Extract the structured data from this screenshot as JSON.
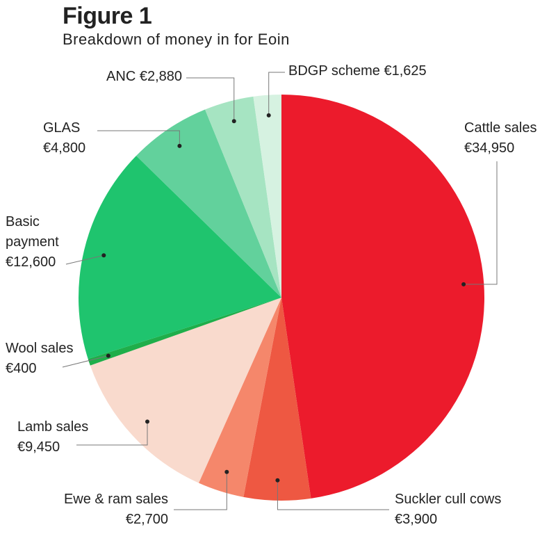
{
  "chart_data": {
    "type": "pie",
    "title": "Figure 1",
    "subtitle": "Breakdown of money in for Eoin",
    "categories": [
      "Cattle sales",
      "Suckler cull cows",
      "Ewe & ram sales",
      "Lamb sales",
      "Wool sales",
      "Basic payment",
      "GLAS",
      "ANC",
      "BDGP scheme"
    ],
    "values": [
      34950,
      3900,
      2700,
      9450,
      400,
      12600,
      4800,
      2880,
      1625
    ],
    "value_labels": [
      "€34,950",
      "€3,900",
      "€2,700",
      "€9,450",
      "€400",
      "€12,600",
      "€4,800",
      "€2,880",
      "€1,625"
    ],
    "colors": [
      "#ec1b2c",
      "#ee5842",
      "#f5876b",
      "#f9dacd",
      "#1fae4a",
      "#1fc46e",
      "#62d19c",
      "#a6e4c2",
      "#d6f2e1"
    ]
  }
}
